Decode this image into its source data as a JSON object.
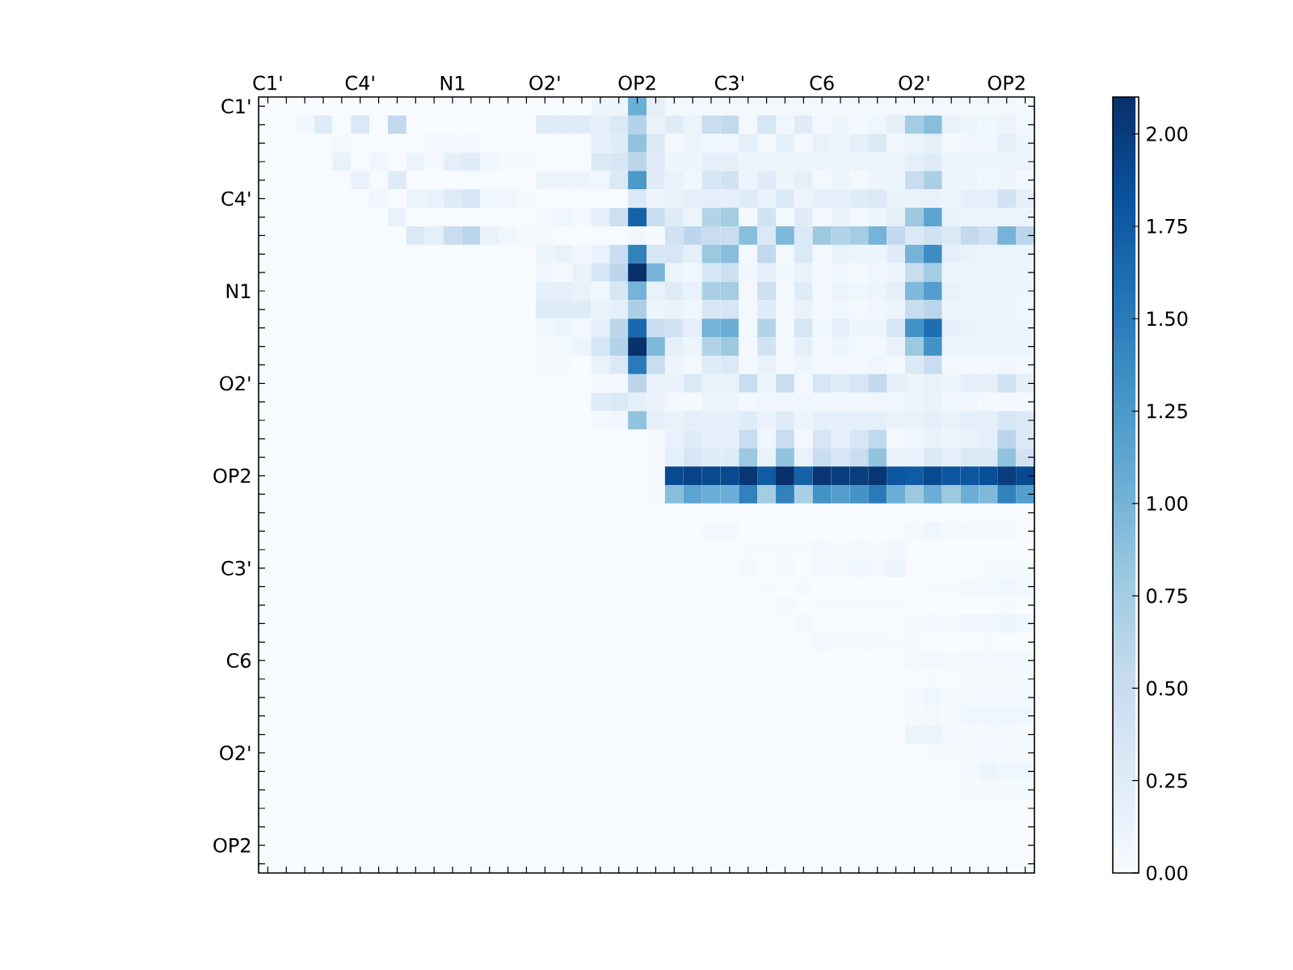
{
  "chart_data": {
    "type": "heatmap",
    "categories": [
      "C1'",
      null,
      null,
      null,
      null,
      "C4'",
      null,
      null,
      null,
      null,
      "N1",
      null,
      null,
      null,
      null,
      "O2'",
      null,
      null,
      null,
      null,
      "OP2",
      null,
      null,
      null,
      null,
      "C3'",
      null,
      null,
      null,
      null,
      "C6",
      null,
      null,
      null,
      null,
      "O2'",
      null,
      null,
      null,
      null,
      "OP2",
      null
    ],
    "y_categories": [
      "C1'",
      null,
      null,
      null,
      null,
      "C4'",
      null,
      null,
      null,
      null,
      "N1",
      null,
      null,
      null,
      null,
      "O2'",
      null,
      null,
      null,
      null,
      "OP2",
      null,
      null,
      null,
      null,
      "C3'",
      null,
      null,
      null,
      null,
      "C6",
      null,
      null,
      null,
      null,
      "O2'",
      null,
      null,
      null,
      null,
      "OP2",
      null
    ],
    "clim": [
      0,
      2.1
    ],
    "cticks": [
      {
        "value": 0,
        "label": "0.00"
      },
      {
        "value": 0.25,
        "label": "0.25"
      },
      {
        "value": 0.5,
        "label": "0.50"
      },
      {
        "value": 0.75,
        "label": "0.75"
      },
      {
        "value": 1,
        "label": "1.00"
      },
      {
        "value": 1.25,
        "label": "1.25"
      },
      {
        "value": 1.5,
        "label": "1.50"
      },
      {
        "value": 1.75,
        "label": "1.75"
      },
      {
        "value": 2,
        "label": "2.00"
      }
    ],
    "cells": [
      [
        0,
        0,
        0,
        0,
        0,
        0,
        0,
        0,
        0,
        0,
        0,
        0,
        0,
        0,
        0,
        0,
        0,
        0,
        0.1,
        0.1,
        1.05,
        0.2,
        0.05,
        0.05,
        0.05,
        0.05,
        0.05,
        0.05,
        0.05,
        0.05,
        0.05,
        0.05,
        0.05,
        0.05,
        0.05,
        0.05,
        0.05,
        0.05,
        0.05,
        0.05,
        0.05,
        0.05
      ],
      [
        0,
        0,
        0.08,
        0.25,
        0,
        0.3,
        0,
        0.55,
        0,
        0,
        0,
        0,
        0,
        0,
        0,
        0.25,
        0.25,
        0.25,
        0.2,
        0.3,
        0.65,
        0.15,
        0.25,
        0.12,
        0.5,
        0.55,
        0.05,
        0.35,
        0.08,
        0.25,
        0.05,
        0.1,
        0.05,
        0.08,
        0.2,
        0.75,
        0.9,
        0.15,
        0.1,
        0.08,
        0.12,
        0.05
      ],
      [
        0,
        0,
        0,
        0,
        0.03,
        0,
        0,
        0,
        0,
        0.05,
        0.05,
        0.05,
        0,
        0,
        0,
        0,
        0,
        0,
        0.2,
        0.25,
        0.85,
        0.3,
        0.05,
        0.12,
        0.08,
        0.08,
        0.2,
        0.05,
        0.2,
        0.05,
        0.15,
        0.1,
        0.2,
        0.3,
        0.08,
        0.12,
        0.2,
        0.03,
        0.08,
        0.08,
        0.2,
        0.1
      ],
      [
        0,
        0,
        0,
        0,
        0.15,
        0,
        0.08,
        0,
        0.12,
        0.05,
        0.2,
        0.25,
        0.08,
        0.03,
        0.03,
        0,
        0,
        0,
        0.3,
        0.35,
        0.6,
        0.25,
        0.1,
        0.1,
        0.2,
        0.2,
        0.1,
        0.12,
        0.1,
        0.12,
        0.1,
        0.12,
        0.1,
        0.12,
        0.12,
        0.2,
        0.25,
        0.1,
        0.12,
        0.1,
        0.12,
        0.12
      ],
      [
        0,
        0,
        0,
        0,
        0,
        0.15,
        0,
        0.25,
        0,
        0,
        0,
        0,
        0,
        0,
        0,
        0.1,
        0.1,
        0.1,
        0.08,
        0.3,
        1.25,
        0.25,
        0.15,
        0.08,
        0.35,
        0.4,
        0.1,
        0.25,
        0.1,
        0.2,
        0.05,
        0.12,
        0.05,
        0.1,
        0.12,
        0.5,
        0.7,
        0.12,
        0.1,
        0.08,
        0.1,
        0.05
      ],
      [
        0,
        0,
        0,
        0,
        0,
        0,
        0.08,
        0,
        0.12,
        0.15,
        0.25,
        0.35,
        0.08,
        0.08,
        0.03,
        0,
        0,
        0,
        0,
        0,
        0.3,
        0.12,
        0.15,
        0.2,
        0.2,
        0.2,
        0.25,
        0.15,
        0.3,
        0.12,
        0.2,
        0.2,
        0.25,
        0.3,
        0.15,
        0.15,
        0.15,
        0.12,
        0.2,
        0.2,
        0.4,
        0.2
      ],
      [
        0,
        0,
        0,
        0,
        0,
        0,
        0,
        0.15,
        0,
        0,
        0,
        0,
        0,
        0,
        0,
        0.05,
        0.08,
        0.05,
        0.2,
        0.45,
        1.7,
        0.5,
        0.25,
        0.12,
        0.65,
        0.75,
        0.05,
        0.4,
        0.05,
        0.25,
        0.05,
        0.15,
        0.05,
        0.1,
        0.2,
        0.8,
        1.15,
        0.15,
        0.12,
        0.12,
        0.12,
        0.12
      ],
      [
        0,
        0,
        0,
        0,
        0,
        0,
        0,
        0,
        0.3,
        0.2,
        0.5,
        0.6,
        0.15,
        0.08,
        0.03,
        0.03,
        0,
        0,
        0,
        0,
        0.08,
        0.02,
        0.4,
        0.6,
        0.5,
        0.5,
        0.9,
        0.3,
        0.95,
        0.3,
        0.8,
        0.65,
        0.75,
        1.0,
        0.55,
        0.3,
        0.4,
        0.3,
        0.55,
        0.45,
        1.0,
        0.6
      ],
      [
        0,
        0,
        0,
        0,
        0,
        0,
        0,
        0,
        0,
        0,
        0,
        0,
        0,
        0,
        0,
        0.1,
        0.15,
        0.08,
        0.15,
        0.5,
        1.45,
        0.35,
        0.35,
        0.2,
        0.8,
        0.9,
        0.05,
        0.55,
        0.05,
        0.3,
        0.05,
        0.15,
        0.1,
        0.1,
        0.25,
        1.0,
        1.35,
        0.2,
        0.15,
        0.12,
        0.12,
        0.12
      ],
      [
        0,
        0,
        0,
        0,
        0,
        0,
        0,
        0,
        0,
        0,
        0,
        0,
        0,
        0,
        0,
        0.08,
        0.05,
        0.15,
        0.35,
        0.6,
        2.1,
        1.0,
        0.12,
        0.08,
        0.35,
        0.45,
        0.08,
        0.2,
        0.08,
        0.15,
        0.05,
        0.08,
        0.05,
        0.08,
        0.12,
        0.5,
        0.75,
        0.1,
        0.1,
        0.1,
        0.1,
        0.1
      ],
      [
        0,
        0,
        0,
        0,
        0,
        0,
        0,
        0,
        0,
        0,
        0,
        0,
        0,
        0,
        0,
        0.2,
        0.2,
        0.15,
        0.08,
        0.35,
        1.0,
        0.15,
        0.25,
        0.15,
        0.7,
        0.75,
        0.05,
        0.45,
        0.05,
        0.25,
        0.05,
        0.12,
        0.08,
        0.1,
        0.2,
        0.95,
        1.2,
        0.15,
        0.12,
        0.1,
        0.1,
        0.1
      ],
      [
        0,
        0,
        0,
        0,
        0,
        0,
        0,
        0,
        0,
        0,
        0,
        0,
        0,
        0,
        0,
        0.25,
        0.25,
        0.25,
        0.15,
        0.2,
        0.7,
        0.1,
        0.15,
        0.08,
        0.35,
        0.35,
        0.05,
        0.25,
        0.05,
        0.15,
        0.05,
        0.08,
        0.05,
        0.08,
        0.12,
        0.5,
        0.6,
        0.12,
        0.1,
        0.1,
        0.1,
        0.08
      ],
      [
        0,
        0,
        0,
        0,
        0,
        0,
        0,
        0,
        0,
        0,
        0,
        0,
        0,
        0,
        0,
        0.08,
        0.1,
        0.05,
        0.2,
        0.6,
        1.65,
        0.5,
        0.4,
        0.2,
        1.0,
        1.05,
        0.05,
        0.65,
        0.05,
        0.35,
        0.08,
        0.2,
        0.1,
        0.1,
        0.35,
        1.3,
        1.6,
        0.2,
        0.15,
        0.12,
        0.12,
        0.12
      ],
      [
        0,
        0,
        0,
        0,
        0,
        0,
        0,
        0,
        0,
        0,
        0,
        0,
        0,
        0,
        0,
        0.03,
        0.05,
        0.1,
        0.35,
        0.65,
        2.1,
        0.95,
        0.2,
        0.1,
        0.65,
        0.8,
        0.05,
        0.4,
        0.05,
        0.2,
        0.05,
        0.1,
        0.05,
        0.05,
        0.15,
        0.8,
        1.3,
        0.12,
        0.1,
        0.1,
        0.1,
        0.1
      ],
      [
        0,
        0,
        0,
        0,
        0,
        0,
        0,
        0,
        0,
        0,
        0,
        0,
        0,
        0,
        0,
        0.03,
        0.03,
        0,
        0.15,
        0.3,
        1.5,
        0.5,
        0.1,
        0.05,
        0.25,
        0.3,
        0.05,
        0.15,
        0.05,
        0.1,
        0.05,
        0.05,
        0.05,
        0.08,
        0.05,
        0.3,
        0.5,
        0.05,
        0.05,
        0.05,
        0.08,
        0.05
      ],
      [
        0,
        0,
        0,
        0,
        0,
        0,
        0,
        0,
        0,
        0,
        0,
        0,
        0,
        0,
        0,
        0,
        0,
        0,
        0.05,
        0.05,
        0.6,
        0.15,
        0.15,
        0.3,
        0.15,
        0.15,
        0.5,
        0.1,
        0.5,
        0.05,
        0.35,
        0.25,
        0.35,
        0.55,
        0.2,
        0.12,
        0.15,
        0.1,
        0.2,
        0.2,
        0.4,
        0.2
      ],
      [
        0,
        0,
        0,
        0,
        0,
        0,
        0,
        0,
        0,
        0,
        0,
        0,
        0,
        0,
        0,
        0,
        0,
        0,
        0.25,
        0.3,
        0.2,
        0.15,
        0.05,
        0.03,
        0.12,
        0.12,
        0.05,
        0.08,
        0.08,
        0.08,
        0.08,
        0.08,
        0.08,
        0.08,
        0.08,
        0.12,
        0.15,
        0.08,
        0.08,
        0.05,
        0.05,
        0.05
      ],
      [
        0,
        0,
        0,
        0,
        0,
        0,
        0,
        0,
        0,
        0,
        0,
        0,
        0,
        0,
        0,
        0,
        0,
        0,
        0.05,
        0.08,
        0.85,
        0.2,
        0.15,
        0.2,
        0.2,
        0.2,
        0.25,
        0.15,
        0.25,
        0.12,
        0.2,
        0.2,
        0.2,
        0.2,
        0.15,
        0.15,
        0.2,
        0.15,
        0.2,
        0.2,
        0.35,
        0.3
      ],
      [
        0,
        0,
        0,
        0,
        0,
        0,
        0,
        0,
        0,
        0,
        0,
        0,
        0,
        0,
        0,
        0,
        0,
        0,
        0,
        0,
        0,
        0.02,
        0.15,
        0.25,
        0.2,
        0.2,
        0.5,
        0.08,
        0.5,
        0.05,
        0.35,
        0.2,
        0.35,
        0.55,
        0.05,
        0.08,
        0.15,
        0.1,
        0.15,
        0.2,
        0.6,
        0.3
      ],
      [
        0,
        0,
        0,
        0,
        0,
        0,
        0,
        0,
        0,
        0,
        0,
        0,
        0,
        0,
        0,
        0,
        0,
        0,
        0,
        0,
        0,
        0.02,
        0.2,
        0.35,
        0.25,
        0.25,
        0.8,
        0.15,
        0.85,
        0.15,
        0.5,
        0.35,
        0.5,
        0.85,
        0.15,
        0.15,
        0.3,
        0.2,
        0.3,
        0.3,
        0.85,
        0.4
      ],
      [
        0,
        0,
        0,
        0,
        0,
        0,
        0,
        0,
        0,
        0,
        0,
        0,
        0,
        0,
        0,
        0,
        0,
        0,
        0,
        0,
        0,
        0.02,
        1.9,
        1.95,
        1.9,
        1.9,
        2.05,
        1.75,
        2.1,
        1.7,
        2.05,
        2.0,
        2.0,
        2.05,
        1.8,
        1.75,
        1.9,
        1.8,
        1.8,
        1.85,
        2.0,
        1.9
      ],
      [
        0,
        0,
        0,
        0,
        0,
        0,
        0,
        0,
        0,
        0,
        0,
        0,
        0,
        0,
        0,
        0,
        0,
        0,
        0,
        0,
        0,
        0.02,
        0.9,
        1.15,
        1.05,
        1.05,
        1.45,
        0.75,
        1.45,
        0.7,
        1.3,
        1.2,
        1.3,
        1.5,
        1.05,
        0.8,
        1.05,
        0.8,
        1.05,
        0.95,
        1.45,
        1.2
      ],
      [
        0,
        0,
        0,
        0,
        0,
        0,
        0,
        0,
        0,
        0,
        0,
        0,
        0,
        0,
        0,
        0,
        0,
        0,
        0,
        0,
        0,
        0,
        0,
        0,
        0,
        0,
        0,
        0,
        0,
        0,
        0,
        0,
        0,
        0,
        0,
        0,
        0,
        0,
        0,
        0,
        0,
        0
      ],
      [
        0,
        0,
        0,
        0,
        0,
        0,
        0,
        0,
        0,
        0,
        0,
        0,
        0,
        0,
        0,
        0,
        0,
        0,
        0,
        0,
        0,
        0,
        0,
        0,
        0.05,
        0.05,
        0,
        0,
        0,
        0,
        0,
        0,
        0,
        0,
        0,
        0.03,
        0.08,
        0.03,
        0.03,
        0.03,
        0.03,
        0
      ],
      [
        0,
        0,
        0,
        0,
        0,
        0,
        0,
        0,
        0,
        0,
        0,
        0,
        0,
        0,
        0,
        0,
        0,
        0,
        0,
        0,
        0,
        0,
        0,
        0,
        0,
        0,
        0.02,
        0.02,
        0.03,
        0.02,
        0.05,
        0.02,
        0.05,
        0.03,
        0.08,
        0,
        0,
        0,
        0,
        0,
        0,
        0
      ],
      [
        0,
        0,
        0,
        0,
        0,
        0,
        0,
        0,
        0,
        0,
        0,
        0,
        0,
        0,
        0,
        0,
        0,
        0,
        0,
        0,
        0,
        0,
        0,
        0,
        0,
        0,
        0.03,
        0,
        0.05,
        0,
        0.05,
        0.02,
        0.08,
        0.05,
        0.1,
        0,
        0,
        0,
        0,
        0.02,
        0.03,
        0.02
      ],
      [
        0,
        0,
        0,
        0,
        0,
        0,
        0,
        0,
        0,
        0,
        0,
        0,
        0,
        0,
        0,
        0,
        0,
        0,
        0,
        0,
        0,
        0,
        0,
        0,
        0,
        0,
        0,
        0.02,
        0,
        0.03,
        0,
        0,
        0,
        0,
        0,
        0,
        0.02,
        0.02,
        0.05,
        0.05,
        0.08,
        0.05
      ],
      [
        0,
        0,
        0,
        0,
        0,
        0,
        0,
        0,
        0,
        0,
        0,
        0,
        0,
        0,
        0,
        0,
        0,
        0,
        0,
        0,
        0,
        0,
        0,
        0,
        0,
        0,
        0,
        0,
        0.03,
        0,
        0.02,
        0.02,
        0.02,
        0.02,
        0.02,
        0,
        0,
        0,
        0,
        0,
        0.02,
        0
      ],
      [
        0,
        0,
        0,
        0,
        0,
        0,
        0,
        0,
        0,
        0,
        0,
        0,
        0,
        0,
        0,
        0,
        0,
        0,
        0,
        0,
        0,
        0,
        0,
        0,
        0,
        0,
        0,
        0,
        0,
        0.05,
        0,
        0,
        0,
        0,
        0,
        0.02,
        0.05,
        0.03,
        0.08,
        0.08,
        0.1,
        0.08
      ],
      [
        0,
        0,
        0,
        0,
        0,
        0,
        0,
        0,
        0,
        0,
        0,
        0,
        0,
        0,
        0,
        0,
        0,
        0,
        0,
        0,
        0,
        0,
        0,
        0,
        0,
        0,
        0,
        0,
        0,
        0,
        0.05,
        0.03,
        0.03,
        0.03,
        0.02,
        0.02,
        0,
        0,
        0,
        0.02,
        0,
        0
      ],
      [
        0,
        0,
        0,
        0,
        0,
        0,
        0,
        0,
        0,
        0,
        0,
        0,
        0,
        0,
        0,
        0,
        0,
        0,
        0,
        0,
        0,
        0,
        0,
        0,
        0,
        0,
        0,
        0,
        0,
        0,
        0,
        0,
        0,
        0,
        0,
        0.03,
        0.05,
        0.03,
        0.05,
        0.05,
        0.05,
        0.05
      ],
      [
        0,
        0,
        0,
        0,
        0,
        0,
        0,
        0,
        0,
        0,
        0,
        0,
        0,
        0,
        0,
        0,
        0,
        0,
        0,
        0,
        0,
        0,
        0,
        0,
        0,
        0,
        0,
        0,
        0,
        0,
        0,
        0,
        0,
        0,
        0,
        0,
        0.02,
        0,
        0.03,
        0.03,
        0.03,
        0.03
      ],
      [
        0,
        0,
        0,
        0,
        0,
        0,
        0,
        0,
        0,
        0,
        0,
        0,
        0,
        0,
        0,
        0,
        0,
        0,
        0,
        0,
        0,
        0,
        0,
        0,
        0,
        0,
        0,
        0,
        0,
        0,
        0,
        0,
        0,
        0,
        0,
        0.05,
        0.08,
        0.03,
        0.05,
        0.05,
        0.05,
        0.05
      ],
      [
        0,
        0,
        0,
        0,
        0,
        0,
        0,
        0,
        0,
        0,
        0,
        0,
        0,
        0,
        0,
        0,
        0,
        0,
        0,
        0,
        0,
        0,
        0,
        0,
        0,
        0,
        0,
        0,
        0,
        0,
        0,
        0,
        0,
        0,
        0,
        0.02,
        0.05,
        0.02,
        0.08,
        0.08,
        0.08,
        0.08
      ],
      [
        0,
        0,
        0,
        0,
        0,
        0,
        0,
        0,
        0,
        0,
        0,
        0,
        0,
        0,
        0,
        0,
        0,
        0,
        0,
        0,
        0,
        0,
        0,
        0,
        0,
        0,
        0,
        0,
        0,
        0,
        0,
        0,
        0,
        0,
        0,
        0.12,
        0.12,
        0.05,
        0.03,
        0.03,
        0.05,
        0.02
      ],
      [
        0,
        0,
        0,
        0,
        0,
        0,
        0,
        0,
        0,
        0,
        0,
        0,
        0,
        0,
        0,
        0,
        0,
        0,
        0,
        0,
        0,
        0,
        0,
        0,
        0,
        0,
        0,
        0,
        0,
        0,
        0,
        0,
        0,
        0,
        0,
        0,
        0.02,
        0.02,
        0.03,
        0.05,
        0.03,
        0.02
      ],
      [
        0,
        0,
        0,
        0,
        0,
        0,
        0,
        0,
        0,
        0,
        0,
        0,
        0,
        0,
        0,
        0,
        0,
        0,
        0,
        0,
        0,
        0,
        0,
        0,
        0,
        0,
        0,
        0,
        0,
        0,
        0,
        0,
        0,
        0,
        0,
        0,
        0,
        0,
        0.05,
        0.1,
        0.08,
        0.08
      ],
      [
        0,
        0,
        0,
        0,
        0,
        0,
        0,
        0,
        0,
        0,
        0,
        0,
        0,
        0,
        0,
        0,
        0,
        0,
        0,
        0,
        0,
        0,
        0,
        0,
        0,
        0,
        0,
        0,
        0,
        0,
        0,
        0,
        0,
        0,
        0,
        0,
        0,
        0,
        0.03,
        0.03,
        0.03,
        0.03
      ],
      [
        0,
        0,
        0,
        0,
        0,
        0,
        0,
        0,
        0,
        0,
        0,
        0,
        0,
        0,
        0,
        0,
        0,
        0,
        0,
        0,
        0,
        0,
        0,
        0,
        0,
        0,
        0,
        0,
        0,
        0,
        0,
        0,
        0,
        0,
        0,
        0,
        0,
        0,
        0,
        0,
        0,
        0
      ],
      [
        0,
        0,
        0,
        0,
        0,
        0,
        0,
        0,
        0,
        0,
        0,
        0,
        0,
        0,
        0,
        0,
        0,
        0,
        0,
        0,
        0,
        0,
        0,
        0,
        0,
        0,
        0,
        0,
        0,
        0,
        0,
        0,
        0,
        0,
        0,
        0,
        0,
        0,
        0,
        0,
        0,
        0
      ],
      [
        0,
        0,
        0,
        0,
        0,
        0,
        0,
        0,
        0,
        0,
        0,
        0,
        0,
        0,
        0,
        0,
        0,
        0,
        0,
        0,
        0,
        0,
        0,
        0,
        0,
        0,
        0,
        0,
        0,
        0,
        0,
        0,
        0,
        0,
        0,
        0,
        0,
        0,
        0,
        0,
        0,
        0
      ],
      [
        0,
        0,
        0,
        0,
        0,
        0,
        0,
        0,
        0,
        0,
        0,
        0,
        0,
        0,
        0,
        0,
        0,
        0,
        0,
        0,
        0,
        0,
        0,
        0,
        0,
        0,
        0,
        0,
        0,
        0,
        0,
        0,
        0,
        0,
        0,
        0,
        0,
        0,
        0,
        0,
        0,
        0
      ]
    ]
  }
}
